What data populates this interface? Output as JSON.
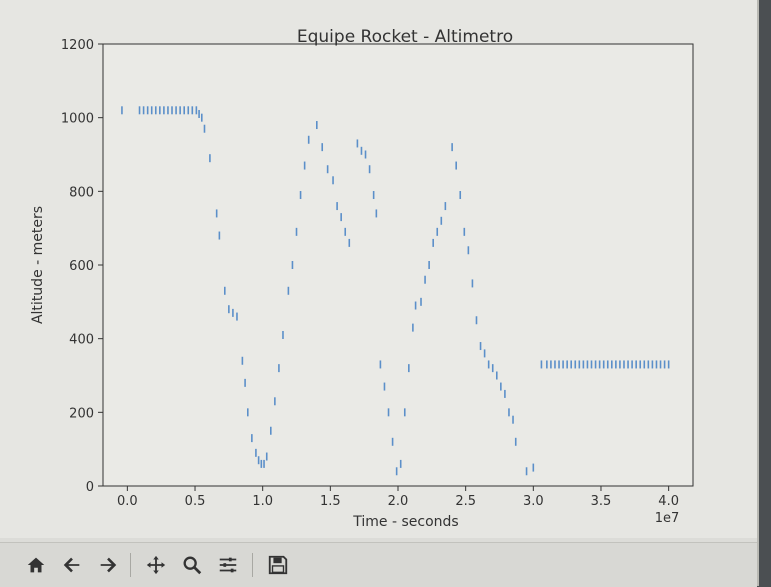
{
  "toolbar": {
    "tools": [
      "home-icon",
      "back-arrow-icon",
      "forward-arrow-icon",
      "pan-icon",
      "zoom-icon",
      "configure-subplots-icon",
      "save-icon"
    ]
  },
  "colors": {
    "series": "#5b8fc9",
    "axes": "#333333",
    "plot_background": "#eaeae6"
  },
  "chart_data": {
    "type": "scatter",
    "title": "Equipe Rocket - Altimetro",
    "xlabel": "Time - seconds",
    "ylabel": "Altitude - meters",
    "x_offset_label": "1e7",
    "xlim": [
      -1800000,
      41800000
    ],
    "ylim": [
      0,
      1200
    ],
    "x_ticks": [
      0,
      5000000,
      10000000,
      15000000,
      20000000,
      25000000,
      30000000,
      35000000,
      40000000
    ],
    "x_tick_labels": [
      "0.0",
      "0.5",
      "1.0",
      "1.5",
      "2.0",
      "2.5",
      "3.0",
      "3.5",
      "4.0"
    ],
    "y_ticks": [
      0,
      200,
      400,
      600,
      800,
      1000,
      1200
    ],
    "y_tick_labels": [
      "0",
      "200",
      "400",
      "600",
      "800",
      "1000",
      "1200"
    ],
    "grid": false,
    "marker": "|",
    "series": [
      {
        "x": [
          -400000,
          900000,
          1200000,
          1500000,
          1800000,
          2100000,
          2400000,
          2700000,
          3000000,
          3300000,
          3600000,
          3900000,
          4200000,
          4500000,
          4800000,
          5100000,
          5300000,
          5500000,
          5700000,
          6100000,
          6600000,
          6800000,
          7200000,
          7500000,
          7800000,
          8100000,
          8500000,
          8700000,
          8900000,
          9200000,
          9500000,
          9700000,
          9900000,
          10100000,
          10300000,
          10600000,
          10900000,
          11200000,
          11500000,
          11900000,
          12200000,
          12500000,
          12800000,
          13100000,
          13400000,
          14000000,
          14400000,
          14800000,
          15200000,
          15500000,
          15800000,
          16100000,
          16400000,
          17000000,
          17300000,
          17600000,
          17900000,
          18200000,
          18400000,
          18700000,
          19000000,
          19300000,
          19600000,
          19900000,
          20200000,
          20500000,
          20800000,
          21100000,
          21300000,
          21700000,
          22000000,
          22300000,
          22600000,
          22900000,
          23200000,
          23500000,
          24000000,
          24300000,
          24600000,
          24900000,
          25200000,
          25500000,
          25800000,
          26100000,
          26400000,
          26700000,
          27000000,
          27300000,
          27600000,
          27900000,
          28200000,
          28500000,
          28700000,
          29500000,
          30000000,
          30600000,
          31000000,
          31300000,
          31600000,
          31900000,
          32200000,
          32500000,
          32800000,
          33100000,
          33400000,
          33700000,
          34000000,
          34300000,
          34600000,
          34900000,
          35200000,
          35500000,
          35800000,
          36100000,
          36400000,
          36700000,
          37000000,
          37300000,
          37600000,
          37900000,
          38200000,
          38500000,
          38800000,
          39100000,
          39400000,
          39700000,
          40000000
        ],
        "y": [
          1020,
          1020,
          1020,
          1020,
          1020,
          1020,
          1020,
          1020,
          1020,
          1020,
          1020,
          1020,
          1020,
          1020,
          1020,
          1020,
          1010,
          1000,
          970,
          890,
          740,
          680,
          530,
          480,
          470,
          460,
          340,
          280,
          200,
          130,
          90,
          70,
          60,
          60,
          80,
          150,
          230,
          320,
          410,
          530,
          600,
          690,
          790,
          870,
          940,
          980,
          920,
          860,
          830,
          760,
          730,
          690,
          660,
          930,
          910,
          900,
          860,
          790,
          740,
          330,
          270,
          200,
          120,
          40,
          60,
          200,
          320,
          430,
          490,
          500,
          560,
          600,
          660,
          690,
          720,
          760,
          920,
          870,
          790,
          690,
          640,
          550,
          450,
          380,
          360,
          330,
          320,
          300,
          270,
          250,
          200,
          180,
          120,
          40,
          50,
          330,
          330,
          330,
          330,
          330,
          330,
          330,
          330,
          330,
          330,
          330,
          330,
          330,
          330,
          330,
          330,
          330,
          330,
          330,
          330,
          330,
          330,
          330,
          330,
          330,
          330,
          330,
          330,
          330,
          330,
          330,
          330
        ]
      }
    ]
  }
}
